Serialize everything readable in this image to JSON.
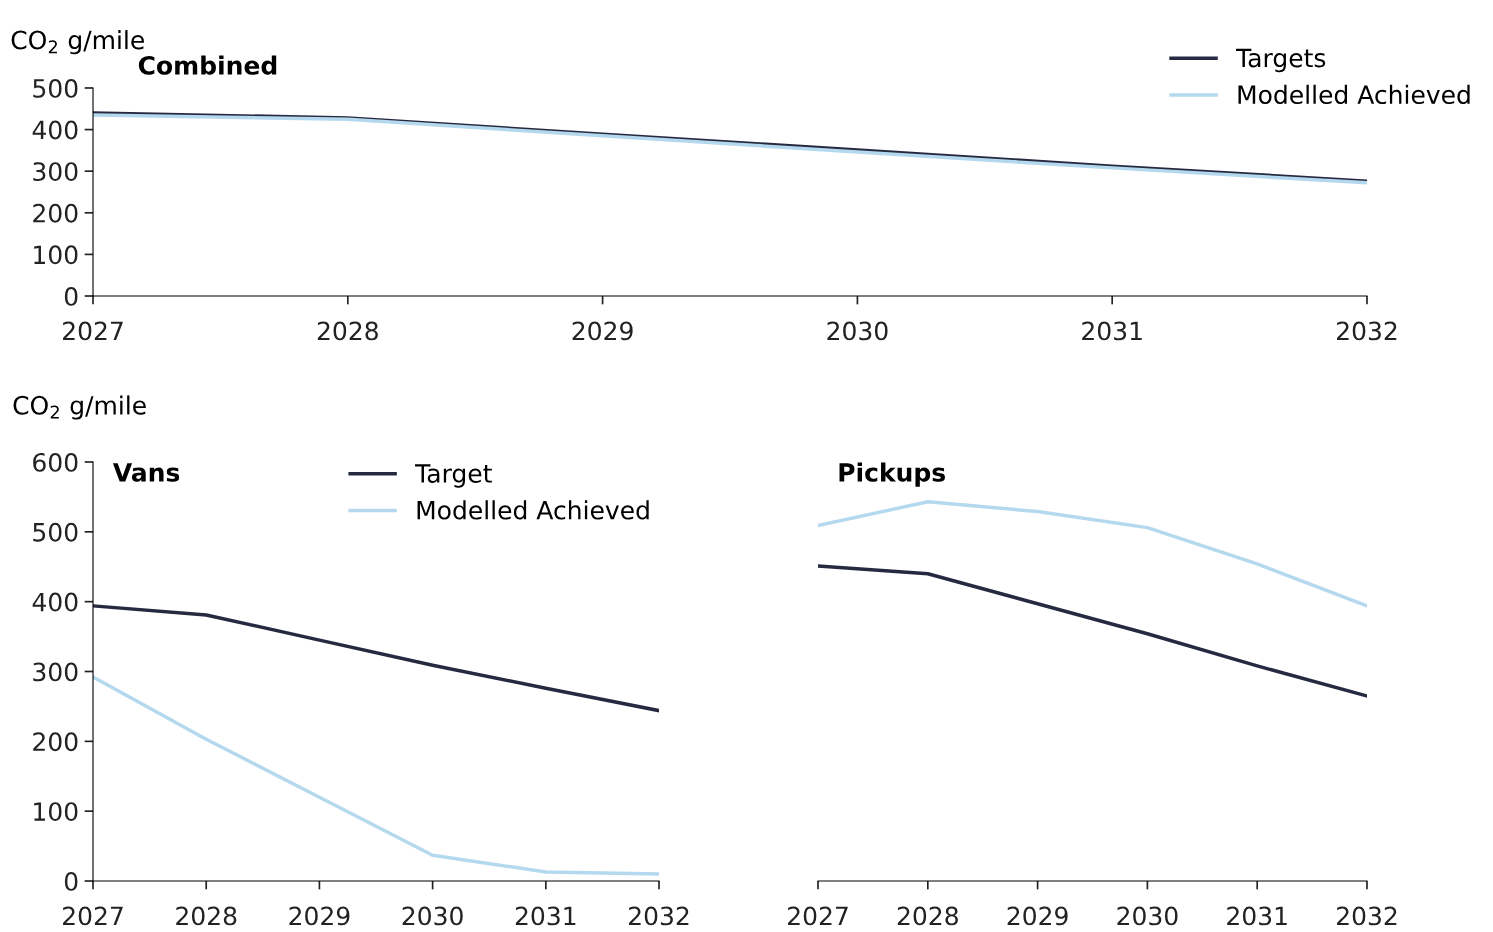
{
  "chart_data": [
    {
      "type": "line",
      "title": "Combined",
      "ylabel": "CO$_{2}$ g/mile",
      "x": [
        2027,
        2028,
        2029,
        2030,
        2031,
        2032
      ],
      "xlim": [
        2027,
        2032
      ],
      "xticks": [
        2027,
        2028,
        2029,
        2030,
        2031,
        2032
      ],
      "ylim": [
        0,
        500
      ],
      "yticks": [
        0,
        100,
        200,
        300,
        400,
        500
      ],
      "legend": "top right",
      "grid": false,
      "line_style": "solid",
      "marker": "none",
      "series": [
        {
          "name": "Targets",
          "color": "#262a40",
          "values": [
            440,
            428,
            389,
            351,
            312,
            276
          ]
        },
        {
          "name": "Modelled Achieved",
          "color": "#b4d8ee",
          "values": [
            435,
            425,
            385,
            346,
            308,
            272
          ]
        }
      ]
    },
    {
      "type": "line",
      "title": "Vans",
      "ylabel": "CO$_{2}$ g/mile",
      "x": [
        2027,
        2028,
        2029,
        2030,
        2031,
        2032
      ],
      "xlim": [
        2027,
        2032
      ],
      "xticks": [
        2027,
        2028,
        2029,
        2030,
        2031,
        2032
      ],
      "ylim": [
        0,
        600
      ],
      "yticks": [
        0,
        100,
        200,
        300,
        400,
        500,
        600
      ],
      "legend": "top",
      "grid": false,
      "line_style": "solid",
      "marker": "none",
      "series": [
        {
          "name": "Target",
          "color": "#262a40",
          "values": [
            394,
            381,
            345,
            309,
            276,
            244
          ]
        },
        {
          "name": "Modelled Achieved",
          "color": "#b4d8ee",
          "values": [
            292,
            203,
            120,
            37,
            13,
            10
          ]
        }
      ]
    },
    {
      "type": "line",
      "title": "Pickups",
      "x": [
        2027,
        2028,
        2029,
        2030,
        2031,
        2032
      ],
      "xlim": [
        2027,
        2032
      ],
      "xticks": [
        2027,
        2028,
        2029,
        2030,
        2031,
        2032
      ],
      "ylim": [
        0,
        600
      ],
      "tick_labels": "x",
      "grid": false,
      "line_style": "solid",
      "marker": "none",
      "series": [
        {
          "color": "#262a40",
          "values": [
            451,
            440,
            397,
            354,
            308,
            265
          ]
        },
        {
          "color": "#b4d8ee",
          "values": [
            509,
            543,
            529,
            506,
            454,
            394
          ]
        }
      ]
    }
  ]
}
